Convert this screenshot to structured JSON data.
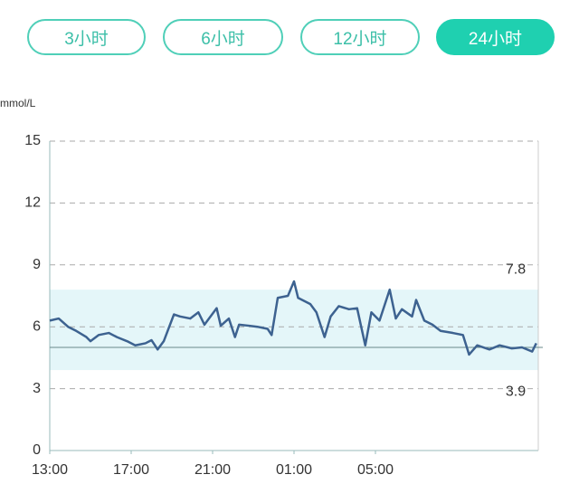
{
  "buttons": [
    {
      "label": "3小时",
      "active": false
    },
    {
      "label": "6小时",
      "active": false
    },
    {
      "label": "12小时",
      "active": false
    },
    {
      "label": "24小时",
      "active": true
    }
  ],
  "chart_data": {
    "type": "line",
    "y_unit_label": "mmol/L",
    "x": [
      0,
      0.44,
      0.9,
      1.3,
      1.8,
      2.0,
      2.4,
      2.9,
      3.3,
      3.8,
      4.2,
      4.7,
      5.0,
      5.3,
      5.6,
      6.1,
      6.4,
      6.9,
      7.3,
      7.6,
      7.9,
      8.2,
      8.4,
      8.8,
      9.1,
      9.3,
      9.8,
      10.2,
      10.7,
      10.9,
      11.2,
      11.7,
      12.0,
      12.2,
      12.8,
      13.1,
      13.5,
      13.8,
      14.2,
      14.7,
      15.1,
      15.5,
      15.8,
      16.2,
      16.7,
      17.0,
      17.3,
      17.8,
      18.0,
      18.4,
      18.8,
      19.2,
      19.8,
      20.3,
      20.6,
      21.0,
      21.6,
      22.1,
      22.7,
      23.2,
      23.7,
      23.9
    ],
    "series": [
      {
        "color": "#3d6290",
        "values": [
          6.3,
          6.4,
          6.0,
          5.8,
          5.5,
          5.3,
          5.6,
          5.7,
          5.5,
          5.3,
          5.1,
          5.2,
          5.35,
          4.9,
          5.3,
          6.6,
          6.5,
          6.4,
          6.7,
          6.1,
          6.5,
          6.9,
          6.05,
          6.4,
          5.5,
          6.1,
          6.05,
          6.0,
          5.9,
          5.6,
          7.4,
          7.5,
          8.2,
          7.4,
          7.1,
          6.7,
          5.5,
          6.5,
          7.0,
          6.85,
          6.9,
          5.1,
          6.7,
          6.3,
          7.8,
          6.4,
          6.85,
          6.5,
          7.3,
          6.3,
          6.1,
          5.8,
          5.7,
          5.6,
          4.65,
          5.1,
          4.9,
          5.1,
          4.95,
          5.0,
          4.8,
          5.2
        ]
      }
    ],
    "xlim": [
      0,
      24
    ],
    "xticks": [
      {
        "value": 0,
        "label": "13:00"
      },
      {
        "value": 4,
        "label": "17:00"
      },
      {
        "value": 8,
        "label": "21:00"
      },
      {
        "value": 12,
        "label": "01:00"
      },
      {
        "value": 16,
        "label": "05:00"
      }
    ],
    "ylim": [
      0,
      15
    ],
    "yticks": [
      0,
      3,
      6,
      9,
      12,
      15
    ],
    "grid": true,
    "target_range": {
      "low": 3.9,
      "high": 7.8,
      "fill": "#e4f6f9",
      "low_color": "#c0392b",
      "high_color": "#d9a21b"
    },
    "average_line": 5.0
  }
}
